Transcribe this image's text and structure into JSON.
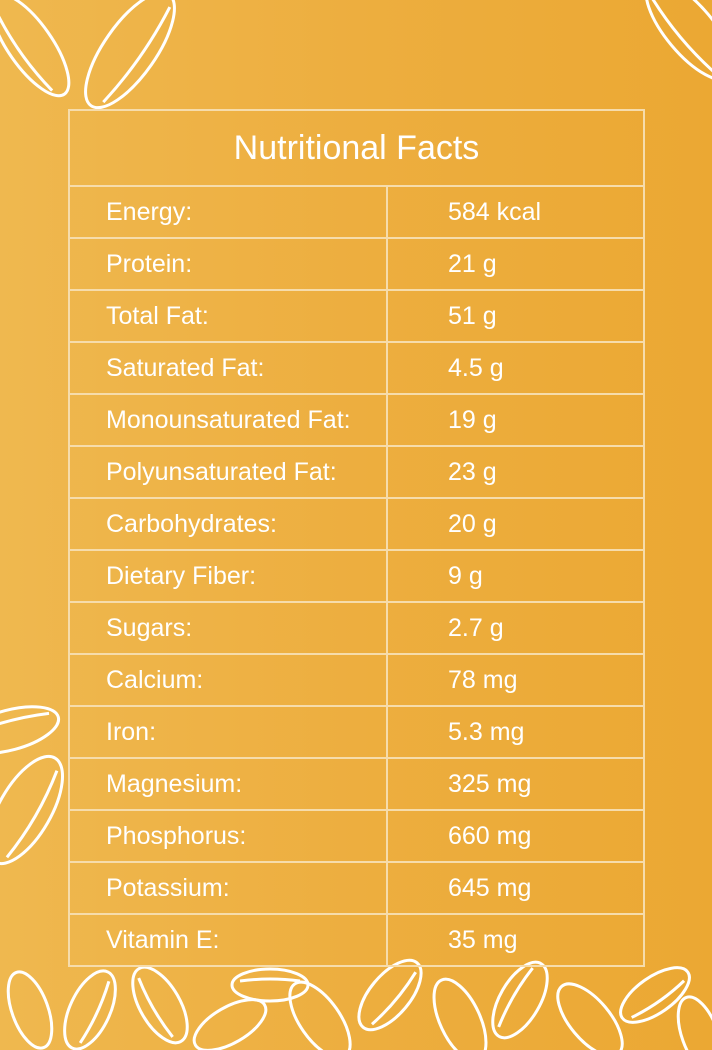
{
  "title": "Nutritional Facts",
  "rows": [
    [
      "Energy:",
      "584 kcal"
    ],
    [
      "Protein:",
      "21 g"
    ],
    [
      "Total Fat:",
      "51 g"
    ],
    [
      "Saturated Fat:",
      "4.5 g"
    ],
    [
      "Monounsaturated Fat:",
      "19 g"
    ],
    [
      "Polyunsaturated Fat:",
      "23 g"
    ],
    [
      "Carbohydrates:",
      "20 g"
    ],
    [
      "Dietary Fiber:",
      "9 g"
    ],
    [
      "Sugars:",
      "2.7 g"
    ],
    [
      "Calcium:",
      "78 mg"
    ],
    [
      "Iron:",
      "5.3 mg"
    ],
    [
      "Magnesium:",
      "325 mg"
    ],
    [
      "Phosphorus:",
      "660 mg"
    ],
    [
      "Potassium:",
      "645 mg"
    ],
    [
      "Vitamin E:",
      "35 mg"
    ]
  ]
}
